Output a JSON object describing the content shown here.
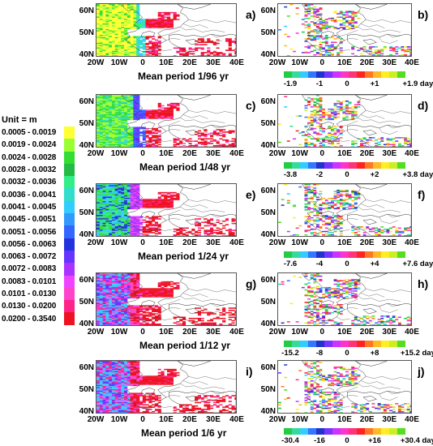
{
  "legend": {
    "title": "Unit = m",
    "items": [
      {
        "label": "0.0005 - 0.0019",
        "color": "#ffff33"
      },
      {
        "label": "0.0019 - 0.0024",
        "color": "#99ff33"
      },
      {
        "label": "0.0024 - 0.0028",
        "color": "#33dd33"
      },
      {
        "label": "0.0028 - 0.0032",
        "color": "#22bb44"
      },
      {
        "label": "0.0032 - 0.0036",
        "color": "#33ee88"
      },
      {
        "label": "0.0036 - 0.0041",
        "color": "#33ddcc"
      },
      {
        "label": "0.0041 - 0.0045",
        "color": "#33ccff"
      },
      {
        "label": "0.0045 - 0.0051",
        "color": "#3399ff"
      },
      {
        "label": "0.0051 - 0.0056",
        "color": "#3366ff"
      },
      {
        "label": "0.0056 - 0.0063",
        "color": "#2233dd"
      },
      {
        "label": "0.0063 - 0.0072",
        "color": "#6633ff"
      },
      {
        "label": "0.0072 - 0.0083",
        "color": "#aa33ff"
      },
      {
        "label": "0.0083 - 0.0101",
        "color": "#ee44ff"
      },
      {
        "label": "0.0101 - 0.0130",
        "color": "#ff44cc"
      },
      {
        "label": "0.0130 - 0.0200",
        "color": "#ff2288"
      },
      {
        "label": "0.0200 - 0.3540",
        "color": "#ee1122"
      }
    ]
  },
  "axis": {
    "y_ticks": [
      "60N",
      "50N",
      "40N"
    ],
    "x_ticks": [
      "20W",
      "10W",
      "0",
      "10E",
      "20E",
      "30E",
      "40E"
    ]
  },
  "rows": [
    {
      "caption": "Mean period 1/96 yr",
      "amp_letter": "a)",
      "phase_letter": "b)",
      "cbar": [
        "-1.9",
        "-1",
        "0",
        "+1",
        "+1.9 days"
      ],
      "amp_style": "yellow"
    },
    {
      "caption": "Mean period  1/48 yr",
      "amp_letter": "c)",
      "phase_letter": "d)",
      "cbar": [
        "-3.8",
        "-2",
        "0",
        "+2",
        "+3.8 days"
      ],
      "amp_style": "green"
    },
    {
      "caption": "Mean period  1/24 yr",
      "amp_letter": "e)",
      "phase_letter": "f)",
      "cbar": [
        "-7.6",
        "-4",
        "0",
        "+4",
        "+7.6 days"
      ],
      "amp_style": "mixed"
    },
    {
      "caption": "Mean period  1/12 yr",
      "amp_letter": "g)",
      "phase_letter": "h)",
      "cbar": [
        "-15.2",
        "-8",
        "0",
        "+8",
        "+15.2 days"
      ],
      "amp_style": "pink"
    },
    {
      "caption": "Mean period  1/6 yr",
      "amp_letter": "i)",
      "phase_letter": "j)",
      "cbar": [
        "-30.4",
        "-16",
        "0",
        "+16",
        "+30.4 days"
      ],
      "amp_style": "pink"
    }
  ],
  "phase_colors": [
    "#22cc44",
    "#33dd99",
    "#33ccff",
    "#3377ff",
    "#2233cc",
    "#7733ff",
    "#cc33ff",
    "#ff33cc",
    "#ff3377",
    "#ff2222",
    "#ff7722",
    "#ffbb22",
    "#ffee22",
    "#ccee22",
    "#55dd22"
  ]
}
